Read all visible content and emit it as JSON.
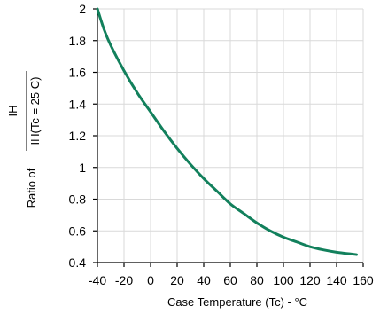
{
  "chart_data": {
    "type": "line",
    "xlabel": "Case Temperature (Tc) - °C",
    "ylabel": {
      "prefix": "Ratio of",
      "numerator": "IH",
      "denominator": "IH(Tc = 25 C)"
    },
    "xlim": [
      -40,
      160
    ],
    "ylim": [
      0.4,
      2
    ],
    "x_ticks": [
      "-40",
      "-20",
      "0",
      "20",
      "40",
      "60",
      "80",
      "100",
      "120",
      "140",
      "160"
    ],
    "y_ticks": [
      "0.4",
      "0.6",
      "0.8",
      "1",
      "1.2",
      "1.4",
      "1.6",
      "1.8",
      "2"
    ],
    "grid": true,
    "series": [
      {
        "color": "#12805c",
        "x": [
          -40,
          -35,
          -30,
          -20,
          -10,
          0,
          10,
          20,
          30,
          40,
          50,
          60,
          70,
          80,
          90,
          100,
          110,
          120,
          130,
          140,
          150,
          155
        ],
        "y": [
          2.0,
          1.87,
          1.77,
          1.61,
          1.47,
          1.35,
          1.23,
          1.12,
          1.02,
          0.93,
          0.85,
          0.77,
          0.71,
          0.65,
          0.6,
          0.56,
          0.53,
          0.5,
          0.48,
          0.465,
          0.455,
          0.45
        ]
      }
    ]
  }
}
